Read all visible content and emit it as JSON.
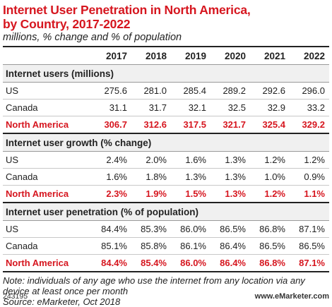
{
  "title_line1": "Internet User Penetration in North America,",
  "title_line2": "by Country, 2017-2022",
  "subtitle": "millions, % change and % of population",
  "chart_data": {
    "type": "table",
    "columns": [
      "2017",
      "2018",
      "2019",
      "2020",
      "2021",
      "2022"
    ],
    "sections": [
      {
        "title": "Internet users (millions)",
        "rows": [
          {
            "label": "US",
            "values": [
              "275.6",
              "281.0",
              "285.4",
              "289.2",
              "292.6",
              "296.0"
            ]
          },
          {
            "label": "Canada",
            "values": [
              "31.1",
              "31.7",
              "32.1",
              "32.5",
              "32.9",
              "33.2"
            ]
          },
          {
            "label": "North America",
            "values": [
              "306.7",
              "312.6",
              "317.5",
              "321.7",
              "325.4",
              "329.2"
            ],
            "total": true
          }
        ]
      },
      {
        "title": "Internet user growth (% change)",
        "rows": [
          {
            "label": "US",
            "values": [
              "2.4%",
              "2.0%",
              "1.6%",
              "1.3%",
              "1.2%",
              "1.2%"
            ]
          },
          {
            "label": "Canada",
            "values": [
              "1.6%",
              "1.8%",
              "1.3%",
              "1.3%",
              "1.0%",
              "0.9%"
            ]
          },
          {
            "label": "North America",
            "values": [
              "2.3%",
              "1.9%",
              "1.5%",
              "1.3%",
              "1.2%",
              "1.1%"
            ],
            "total": true
          }
        ]
      },
      {
        "title": "Internet user penetration (% of population)",
        "rows": [
          {
            "label": "US",
            "values": [
              "84.4%",
              "85.3%",
              "86.0%",
              "86.5%",
              "86.8%",
              "87.1%"
            ]
          },
          {
            "label": "Canada",
            "values": [
              "85.1%",
              "85.8%",
              "86.1%",
              "86.4%",
              "86.5%",
              "86.5%"
            ]
          },
          {
            "label": "North America",
            "values": [
              "84.4%",
              "85.4%",
              "86.0%",
              "86.4%",
              "86.8%",
              "87.1%"
            ],
            "total": true
          }
        ]
      }
    ]
  },
  "note_line1": "Note: individuals of any age who use the internet from any location via any",
  "note_line2": "device at least once per month",
  "source": "Source: eMarketer, Oct 2018",
  "figure_id": "243195",
  "brand": "www.eMarketer.com",
  "colors": {
    "accent": "#d6161f",
    "text": "#222222",
    "section_bg": "#f0f0f0"
  }
}
